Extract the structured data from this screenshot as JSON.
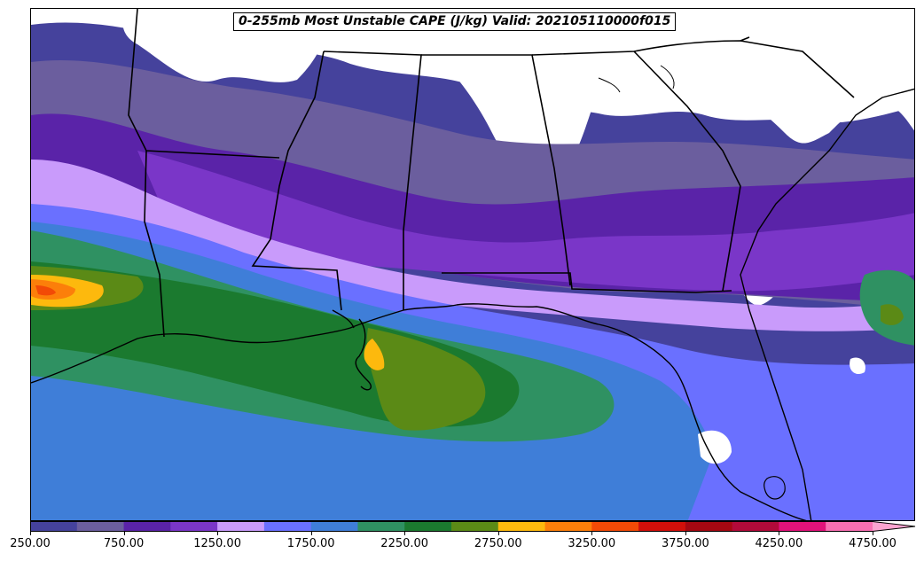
{
  "title": "0-255mb Most Unstable CAPE (J/kg) Valid: 202105110000f015",
  "colorbar": {
    "levels": [
      "250.00",
      "500",
      "750.00",
      "1000",
      "1250.00",
      "1500",
      "1750.00",
      "2000",
      "2250.00",
      "2500",
      "2750.00",
      "3000",
      "3250.00",
      "3500",
      "3750.00",
      "4000",
      "4250.00",
      "4500",
      "4750.00"
    ],
    "tick_labels": [
      "250.00",
      "750.00",
      "1250.00",
      "1750.00",
      "2250.00",
      "2750.00",
      "3250.00",
      "3750.00",
      "4250.00",
      "4750.00"
    ],
    "colors": [
      "#45429c",
      "#6b5e9e",
      "#5a23a8",
      "#7a36c8",
      "#c99bfb",
      "#6a70ff",
      "#3f7ed8",
      "#2f9162",
      "#1b7a2f",
      "#5b8a16",
      "#fdb90d",
      "#fc7f0a",
      "#f24a06",
      "#d20f0a",
      "#a50812",
      "#b20a3a",
      "#e2127a",
      "#f86fb2",
      "#fba3d0"
    ],
    "extend": "max"
  },
  "map": {
    "region": "Southeastern United States and Gulf of Mexico",
    "field": "Most Unstable CAPE",
    "units": "J/kg",
    "features": [
      "state-borders",
      "coastline",
      "filled-contours"
    ]
  }
}
